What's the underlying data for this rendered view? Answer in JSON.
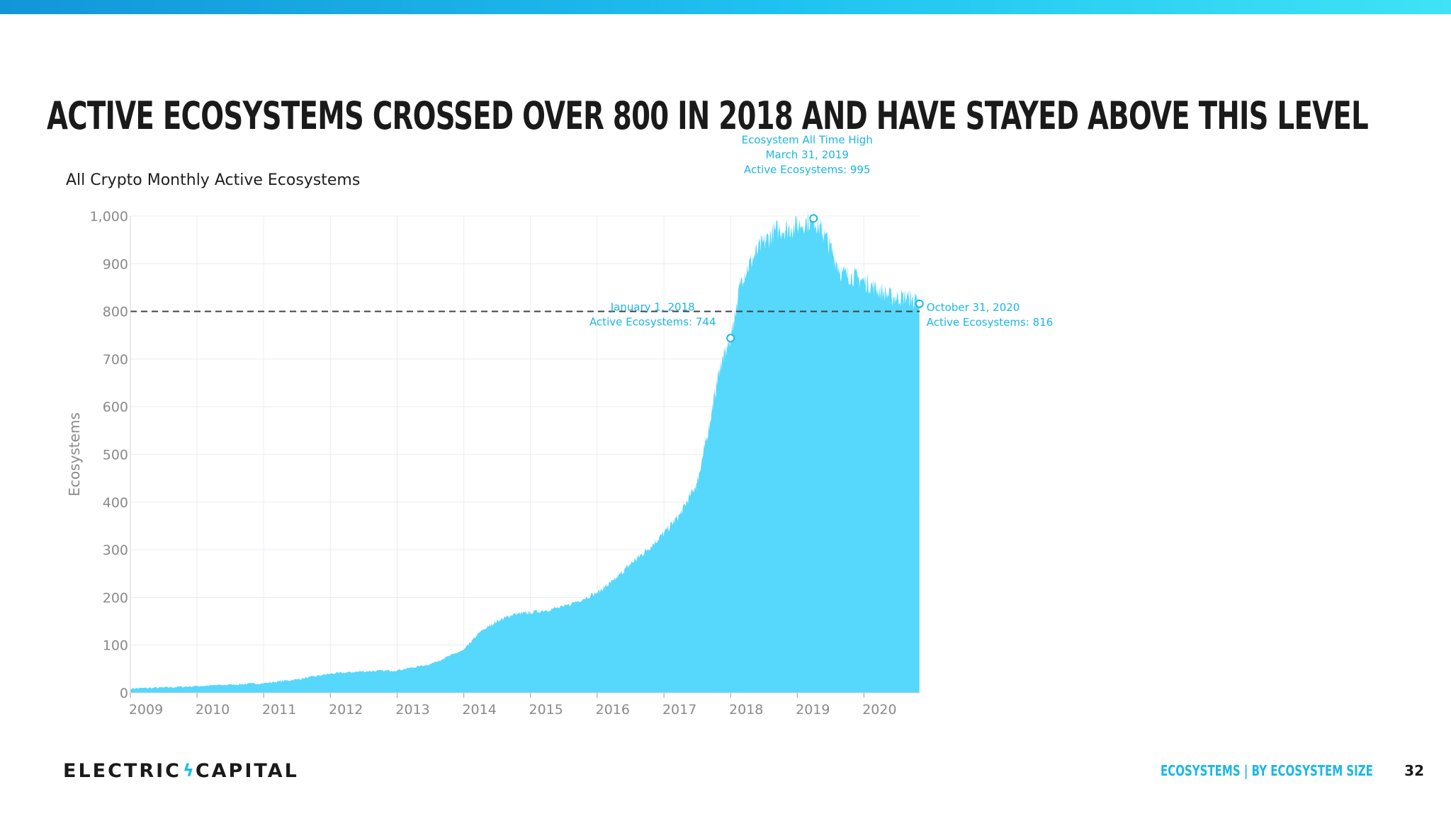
{
  "slide": {
    "headline": "Active Ecosystems Crossed over 800 in 2018 and have stayed above this level",
    "footer_section": "Ecosystems | By Ecosystem Size",
    "page_number": "32",
    "logo": {
      "left": "ELECTRIC",
      "right": "CAPITAL",
      "bolt_icon": "lightning-bolt-icon"
    }
  },
  "colors": {
    "accent": "#1fc3f0",
    "area_fill": "#55d8fb",
    "annotation": "#1bb6e6",
    "reference_line": "#444444",
    "grid": "#ebedf4",
    "tick_text": "#8a8a8a"
  },
  "chart_data": {
    "type": "area",
    "title": "All Crypto Monthly Active Ecosystems",
    "ylabel": "Ecosystems",
    "xlabel": "",
    "ylim": [
      0,
      1000
    ],
    "xlim": [
      "2009-01-01",
      "2020-11-01"
    ],
    "y_ticks": [
      0,
      100,
      200,
      300,
      400,
      500,
      600,
      700,
      800,
      900,
      1000
    ],
    "y_tick_labels": [
      "0",
      "100",
      "200",
      "300",
      "400",
      "500",
      "600",
      "700",
      "800",
      "900",
      "1,000"
    ],
    "x_ticks": [
      "2009",
      "2010",
      "2011",
      "2012",
      "2013",
      "2014",
      "2015",
      "2016",
      "2017",
      "2018",
      "2019",
      "2020"
    ],
    "grid": true,
    "legend": "none",
    "reference_line": {
      "y": 800,
      "style": "dashed"
    },
    "series": [
      {
        "name": "",
        "points": [
          [
            "2009-01-01",
            9
          ],
          [
            "2009-07-01",
            11
          ],
          [
            "2010-01-01",
            14
          ],
          [
            "2010-07-01",
            17
          ],
          [
            "2011-01-01",
            20
          ],
          [
            "2011-07-01",
            28
          ],
          [
            "2012-01-01",
            40
          ],
          [
            "2012-07-01",
            45
          ],
          [
            "2013-01-01",
            47
          ],
          [
            "2013-07-01",
            60
          ],
          [
            "2014-01-01",
            90
          ],
          [
            "2014-04-01",
            128
          ],
          [
            "2014-07-01",
            150
          ],
          [
            "2014-10-01",
            165
          ],
          [
            "2015-01-01",
            168
          ],
          [
            "2015-07-01",
            180
          ],
          [
            "2016-01-01",
            210
          ],
          [
            "2016-04-01",
            235
          ],
          [
            "2016-07-01",
            270
          ],
          [
            "2016-10-01",
            300
          ],
          [
            "2017-01-01",
            335
          ],
          [
            "2017-04-01",
            375
          ],
          [
            "2017-07-01",
            440
          ],
          [
            "2017-09-01",
            550
          ],
          [
            "2017-11-01",
            680
          ],
          [
            "2018-01-01",
            744
          ],
          [
            "2018-03-01",
            870
          ],
          [
            "2018-06-01",
            930
          ],
          [
            "2018-09-01",
            970
          ],
          [
            "2018-12-01",
            975
          ],
          [
            "2019-03-31",
            995
          ],
          [
            "2019-06-01",
            960
          ],
          [
            "2019-09-01",
            880
          ],
          [
            "2019-12-01",
            870
          ],
          [
            "2020-03-01",
            850
          ],
          [
            "2020-06-01",
            830
          ],
          [
            "2020-09-01",
            830
          ],
          [
            "2020-10-31",
            816
          ]
        ]
      }
    ],
    "annotations": [
      {
        "date": "2018-01-01",
        "value": 744,
        "lines": [
          "January 1, 2018",
          "Active Ecosystems: 744"
        ]
      },
      {
        "date": "2019-03-31",
        "value": 995,
        "lines": [
          "Ecosystem All Time High",
          "March 31, 2019",
          "Active Ecosystems: 995"
        ]
      },
      {
        "date": "2020-10-31",
        "value": 816,
        "lines": [
          "October 31, 2020",
          "Active Ecosystems: 816"
        ]
      }
    ]
  }
}
